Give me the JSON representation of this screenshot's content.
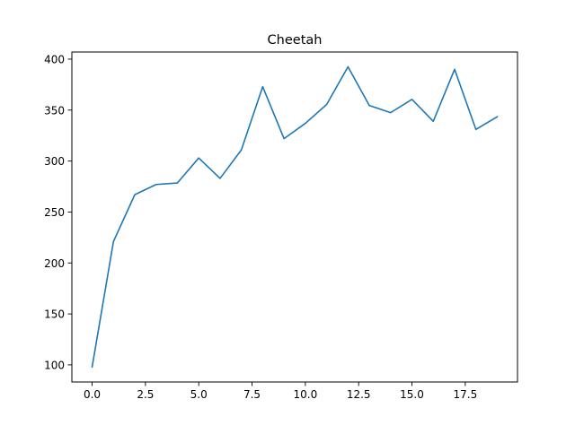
{
  "chart_data": {
    "type": "line",
    "title": "Cheetah",
    "xlabel": "",
    "ylabel": "",
    "xlim": [
      -0.95,
      19.95
    ],
    "ylim": [
      83.2,
      407.0
    ],
    "xticks": [
      0.0,
      2.5,
      5.0,
      7.5,
      10.0,
      12.5,
      15.0,
      17.5
    ],
    "xtick_labels": [
      "0.0",
      "2.5",
      "5.0",
      "7.5",
      "10.0",
      "12.5",
      "15.0",
      "17.5"
    ],
    "yticks": [
      100,
      150,
      200,
      250,
      300,
      350,
      400
    ],
    "ytick_labels": [
      "100",
      "150",
      "200",
      "250",
      "300",
      "350",
      "400"
    ],
    "grid": false,
    "series": [
      {
        "color": "#1f77b4",
        "x": [
          0,
          1,
          2,
          3,
          4,
          5,
          6,
          7,
          8,
          9,
          10,
          11,
          12,
          13,
          14,
          15,
          16,
          17,
          18,
          19
        ],
        "y": [
          98,
          221,
          267,
          277,
          278.5,
          303,
          283,
          311,
          373,
          322,
          337,
          355.5,
          392.5,
          354.5,
          347.5,
          360.5,
          339,
          390,
          331,
          343.5
        ]
      }
    ]
  }
}
